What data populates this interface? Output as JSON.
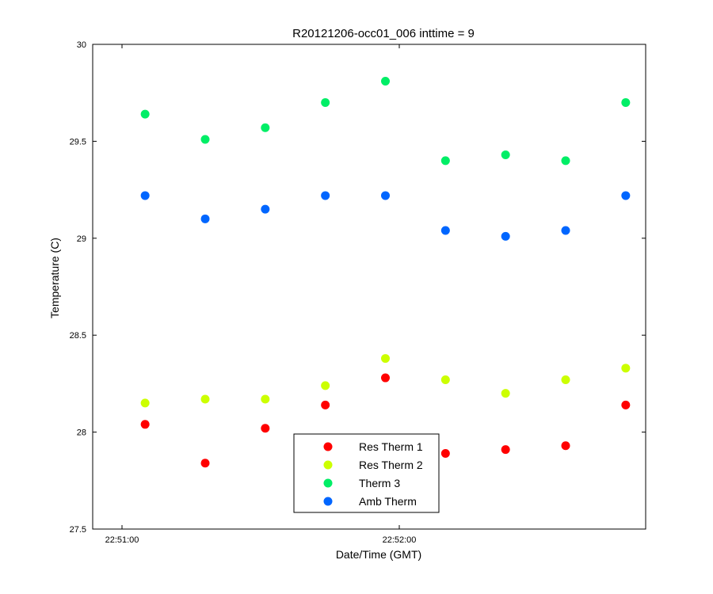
{
  "chart_data": {
    "type": "scatter",
    "title": "R20121206-occ01_006 inttime = 9",
    "xlabel": "Date/Time (GMT)",
    "ylabel": "Temperature (C)",
    "x_tick_labels": [
      "22:51:00",
      "22:52:00"
    ],
    "y_ticks": [
      27.5,
      28,
      28.5,
      29,
      29.5,
      30
    ],
    "y_tick_labels": [
      "27.5",
      "28",
      "28.5",
      "29",
      "29.5",
      "30"
    ],
    "ylim": [
      27.5,
      30
    ],
    "grid": false,
    "legend_position": "bottom-center",
    "series": [
      {
        "name": "Res Therm 1",
        "color": "#ff0000",
        "x": [
          "22:51:05",
          "22:51:18",
          "22:51:31",
          "22:51:44",
          "22:51:57",
          "22:52:10",
          "22:52:23",
          "22:52:36",
          "22:52:49"
        ],
        "y": [
          28.04,
          27.84,
          28.02,
          28.14,
          28.28,
          27.89,
          27.91,
          27.93,
          28.14
        ]
      },
      {
        "name": "Res Therm 2",
        "color": "#ccff00",
        "x": [
          "22:51:05",
          "22:51:18",
          "22:51:31",
          "22:51:44",
          "22:51:57",
          "22:52:10",
          "22:52:23",
          "22:52:36",
          "22:52:49"
        ],
        "y": [
          28.15,
          28.17,
          28.17,
          28.24,
          28.38,
          28.27,
          28.2,
          28.27,
          28.33
        ]
      },
      {
        "name": "Therm 3",
        "color": "#00ee66",
        "x": [
          "22:51:05",
          "22:51:18",
          "22:51:31",
          "22:51:44",
          "22:51:57",
          "22:52:10",
          "22:52:23",
          "22:52:36",
          "22:52:49"
        ],
        "y": [
          29.64,
          29.51,
          29.57,
          29.7,
          29.81,
          29.4,
          29.43,
          29.4,
          29.7
        ]
      },
      {
        "name": "Amb Therm",
        "color": "#0066ff",
        "x": [
          "22:51:05",
          "22:51:18",
          "22:51:31",
          "22:51:44",
          "22:51:57",
          "22:52:10",
          "22:52:23",
          "22:52:36",
          "22:52:49"
        ],
        "y": [
          29.22,
          29.1,
          29.15,
          29.22,
          29.22,
          29.04,
          29.01,
          29.04,
          29.22
        ]
      }
    ]
  }
}
